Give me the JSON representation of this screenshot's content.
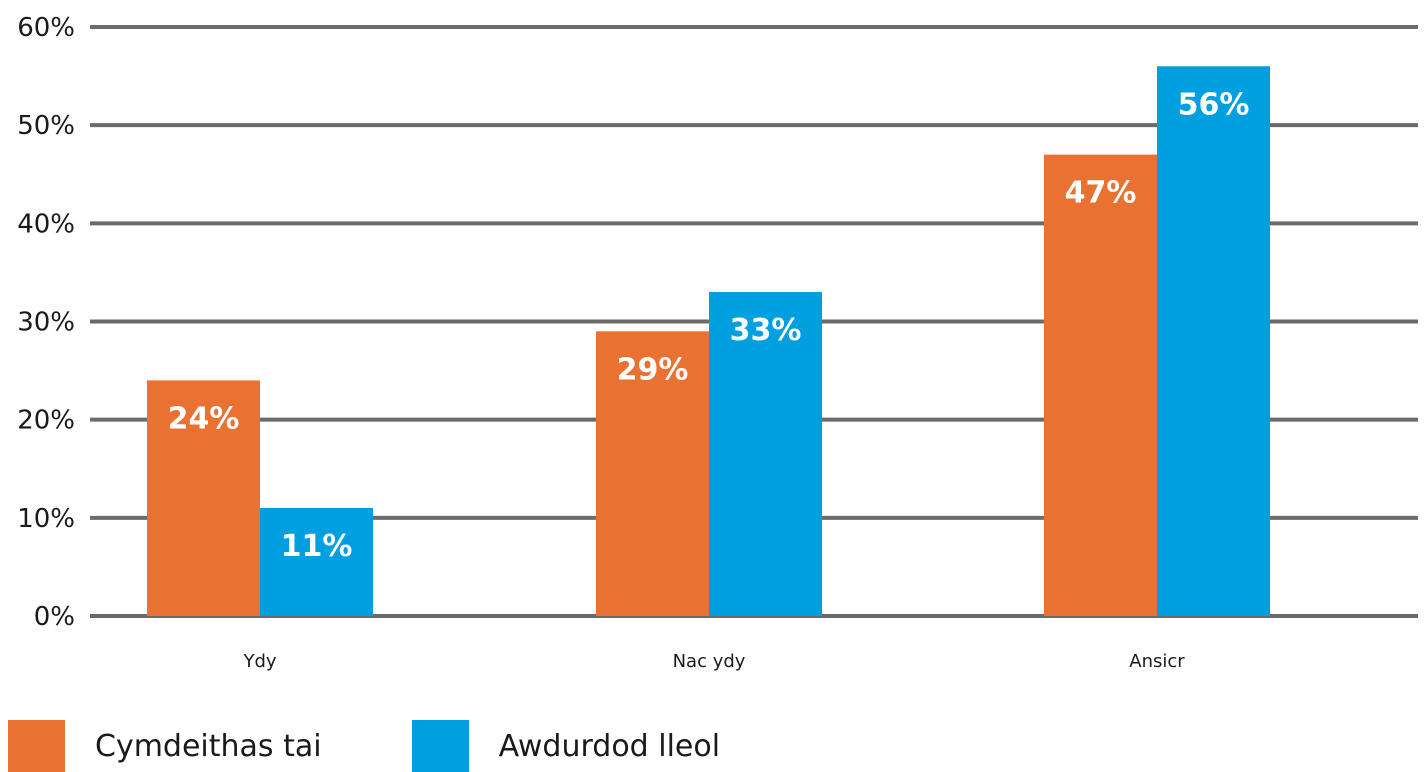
{
  "chart_data": {
    "type": "bar",
    "title": "",
    "xlabel": "",
    "ylabel": "",
    "categories": [
      "Ydy",
      "Nac ydy",
      "Ansicr"
    ],
    "series": [
      {
        "name": "Cymdeithas tai",
        "color": "#E97132",
        "values": [
          24,
          29,
          47
        ],
        "labels": [
          "24%",
          "29%",
          "47%"
        ]
      },
      {
        "name": "Awdurdod lleol",
        "color": "#009FE0",
        "values": [
          11,
          33,
          56
        ],
        "labels": [
          "11%",
          "33%",
          "56%"
        ]
      }
    ],
    "ylim": [
      0,
      60
    ],
    "yticks": [
      0,
      10,
      20,
      30,
      40,
      50,
      60
    ],
    "ytick_labels": [
      "0%",
      "10%",
      "20%",
      "30%",
      "40%",
      "50%",
      "60%"
    ],
    "grid": true,
    "gridline_color": "#6b6b6b",
    "legend_position": "bottom-left"
  }
}
